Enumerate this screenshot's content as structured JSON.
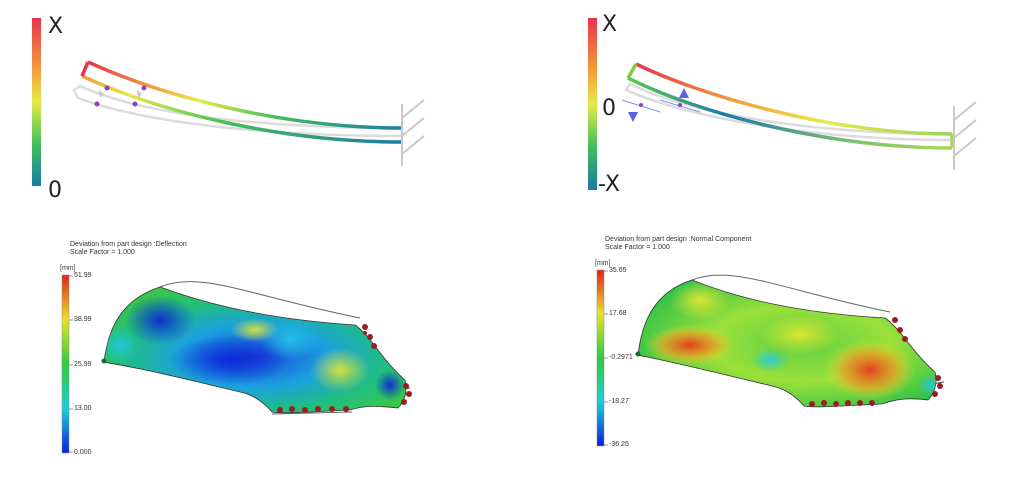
{
  "top_left": {
    "scale_top": "X",
    "scale_bottom": "0",
    "colors": {
      "top": "#e8334f",
      "mid": "#f5e84a",
      "green": "#3fbf5a",
      "bottom": "#1d7aa6"
    }
  },
  "top_right": {
    "scale_top": "X",
    "scale_mid": "0",
    "scale_bottom": "-X",
    "arrow_color": "#5a63e6"
  },
  "bottom_left": {
    "title": "Deviation from part design :Deflection",
    "scale_factor": "Scale Factor = 1.000",
    "unit": "[mm]",
    "ticks": [
      "51.99",
      "38.99",
      "25.99",
      "13.00",
      "0.000"
    ]
  },
  "bottom_right": {
    "title": "Deviation from part design :Normal Component",
    "scale_factor": "Scale Factor = 1.000",
    "unit": "[mm]",
    "ticks": [
      "35.65",
      "17.68",
      "-0.2971",
      "-18.27",
      "-36.25"
    ]
  },
  "constraint_color": "#9c1c24"
}
